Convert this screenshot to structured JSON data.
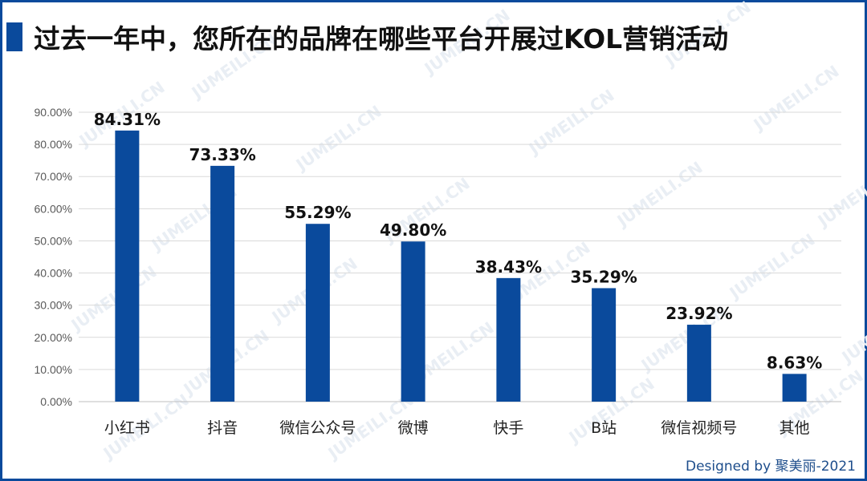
{
  "title": "过去一年中，您所在的品牌在哪些平台开展过KOL营销活动",
  "watermark": "JUMEILI.CN",
  "credit": "Designed by 聚美丽-2021",
  "colors": {
    "bar": "#0a4a9c",
    "grid": "#d9d9d9",
    "accent": "#0a4a9c"
  },
  "chart_data": {
    "type": "bar",
    "title": "过去一年中，您所在的品牌在哪些平台开展过KOL营销活动",
    "categories": [
      "小红书",
      "抖音",
      "微信公众号",
      "微博",
      "快手",
      "B站",
      "微信视频号",
      "其他"
    ],
    "values": [
      84.31,
      73.33,
      55.29,
      49.8,
      38.43,
      35.29,
      23.92,
      8.63
    ],
    "value_labels": [
      "84.31%",
      "73.33%",
      "55.29%",
      "49.80%",
      "38.43%",
      "35.29%",
      "23.92%",
      "8.63%"
    ],
    "y_ticks": [
      0,
      10,
      20,
      30,
      40,
      50,
      60,
      70,
      80,
      90
    ],
    "y_tick_labels": [
      "0.00%",
      "10.00%",
      "20.00%",
      "30.00%",
      "40.00%",
      "50.00%",
      "60.00%",
      "70.00%",
      "80.00%",
      "90.00%"
    ],
    "ylim": [
      0,
      90
    ],
    "grid": true,
    "legend": "none",
    "xlabel": "",
    "ylabel": ""
  }
}
